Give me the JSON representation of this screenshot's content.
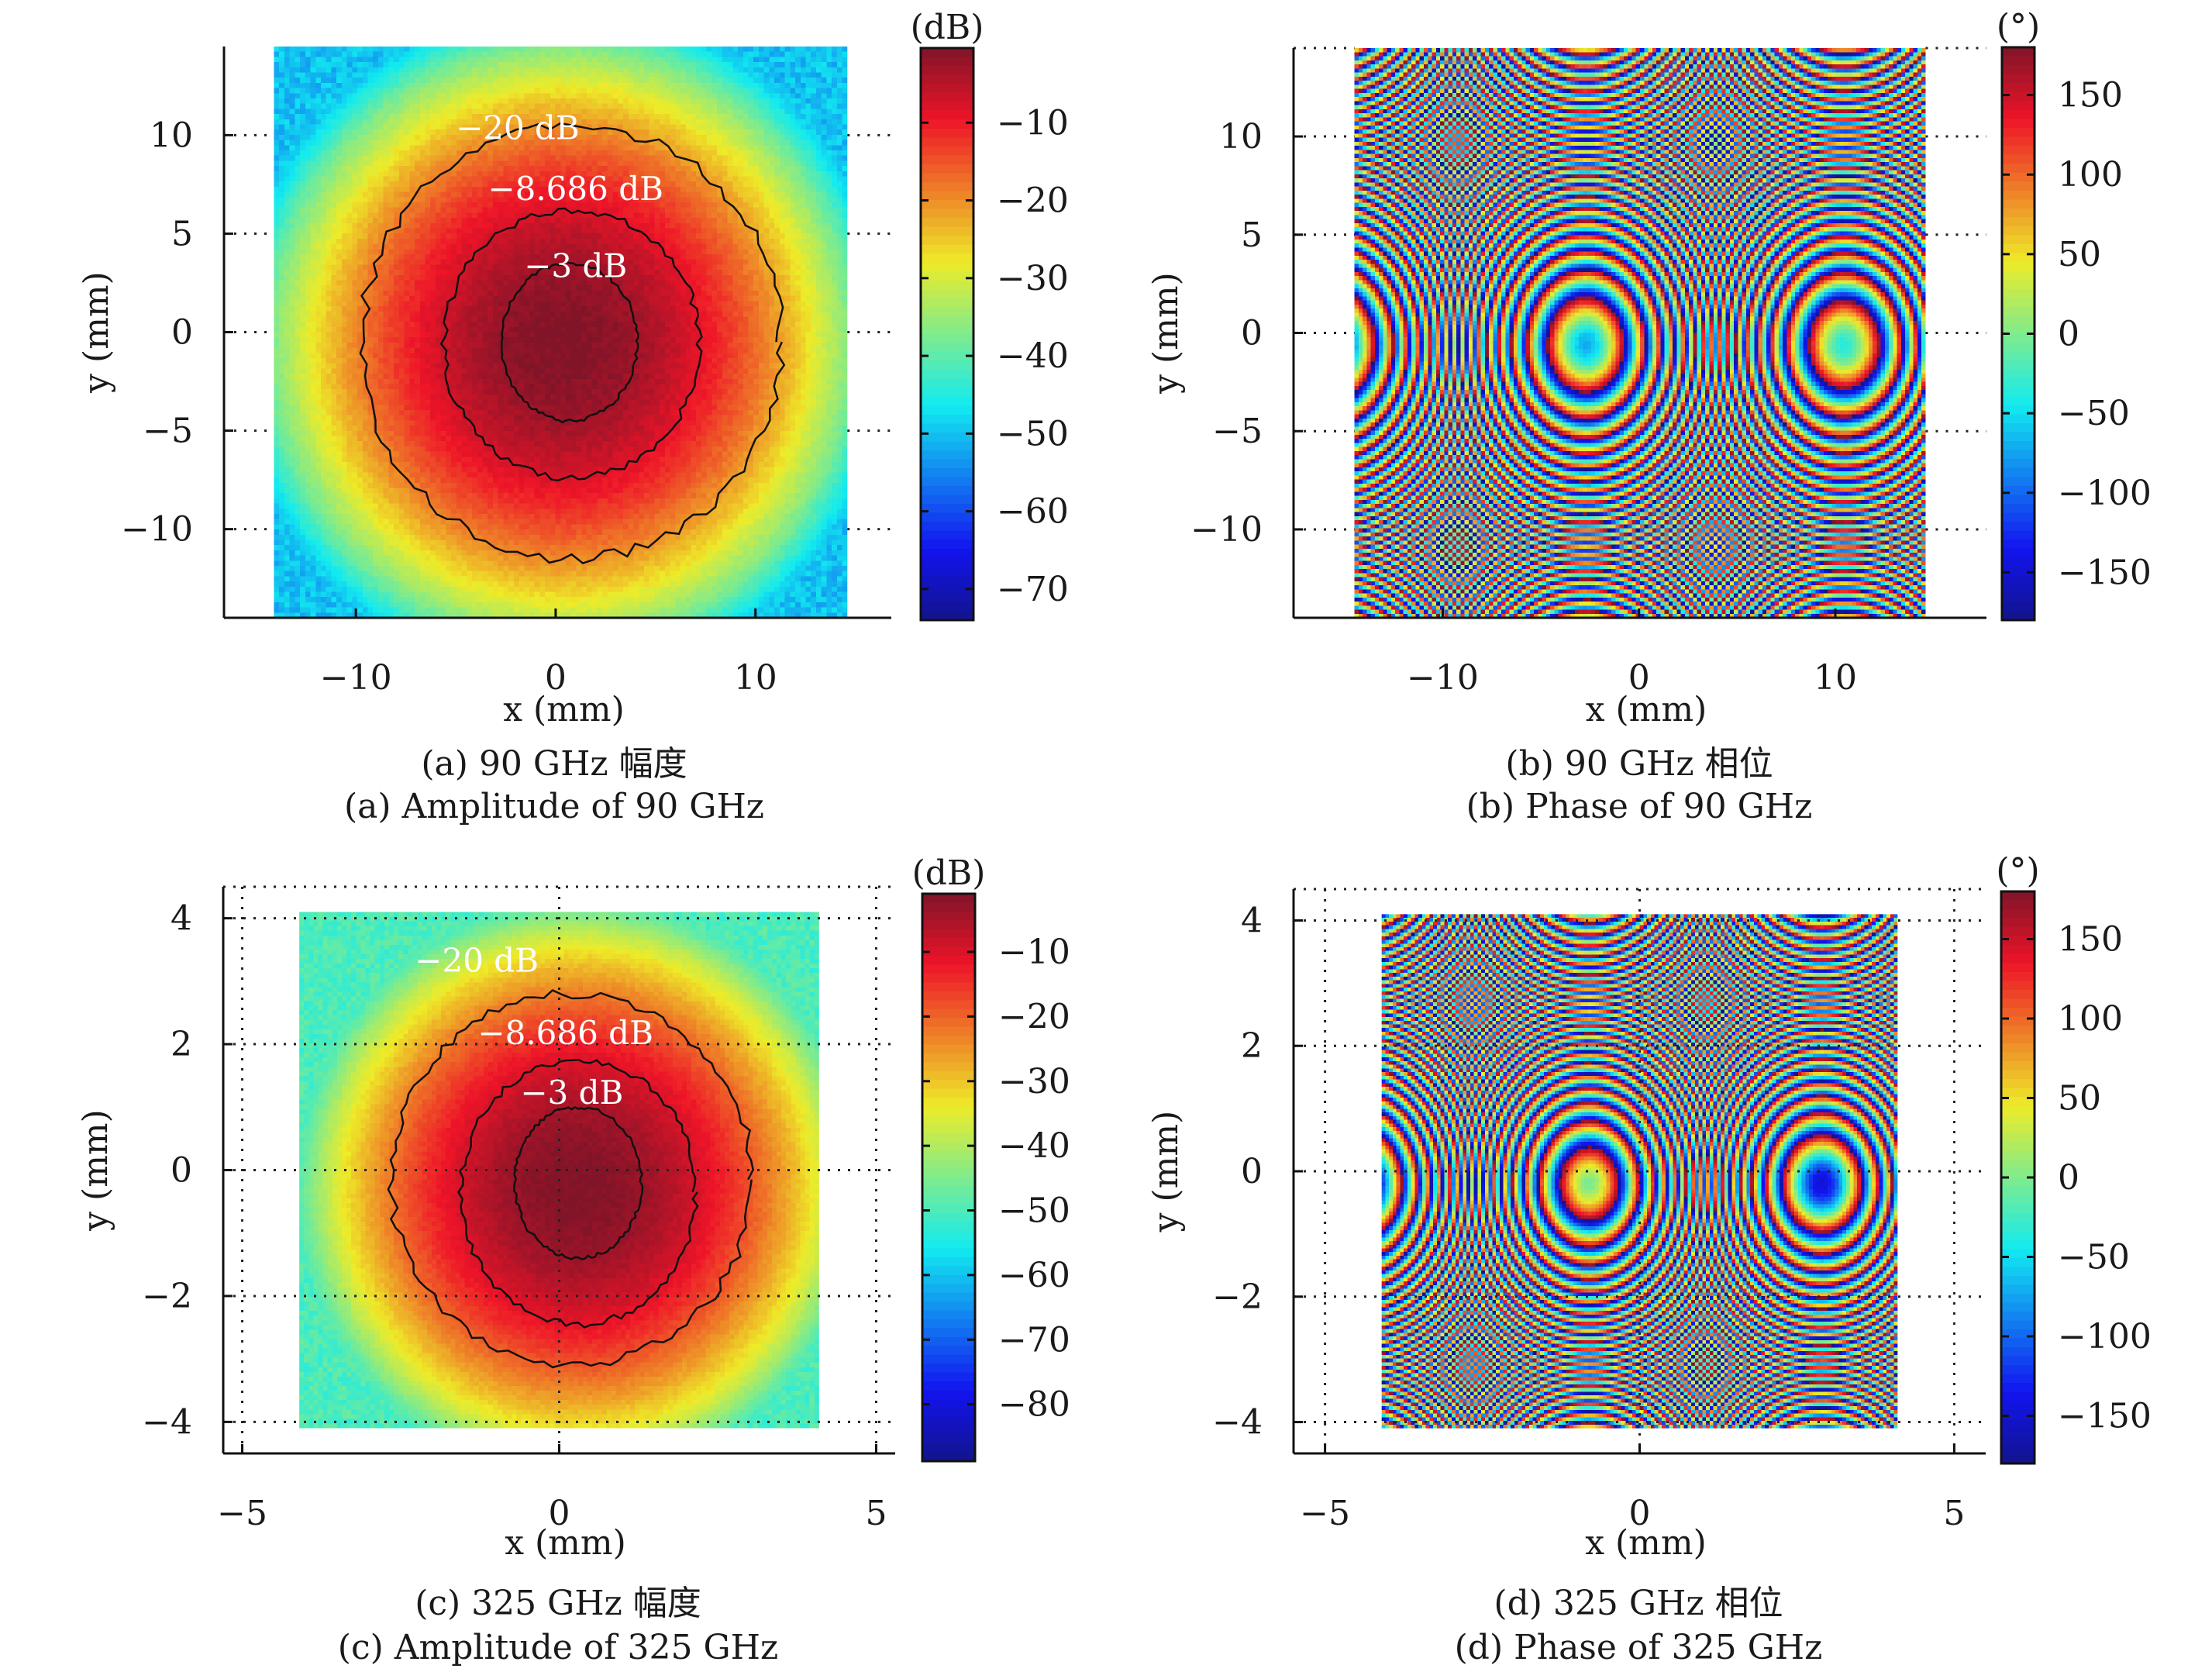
{
  "figure": {
    "panels": [
      "a",
      "b",
      "c",
      "d"
    ]
  },
  "chart_data": [
    {
      "id": "a",
      "type": "heatmap",
      "quantity": "amplitude",
      "title": "",
      "caption_cn": "(a) 90 GHz 幅度",
      "caption_en": "(a) Amplitude of 90 GHz",
      "xlabel": "x (mm)",
      "ylabel": "y (mm)",
      "xlim": [
        -16.6,
        16.8
      ],
      "ylim": [
        -14.5,
        14.5
      ],
      "data_xrange": [
        -14.1,
        14.6
      ],
      "data_yrange": [
        -14.5,
        14.5
      ],
      "xticks": [
        -10,
        0,
        10
      ],
      "xtick_labels": [
        "−10",
        "0",
        "10"
      ],
      "yticks": [
        10,
        5,
        0,
        -5,
        -10
      ],
      "ytick_labels": [
        "10",
        "5",
        "0",
        "−5",
        "−10"
      ],
      "grid": "dotted at y ticks outside data region",
      "colorbar": {
        "unit": "(dB)",
        "range": [
          -74,
          -0.4
        ],
        "ticks": [
          -10,
          -20,
          -30,
          -40,
          -50,
          -60,
          -70
        ],
        "tick_labels": [
          "−10",
          "−20",
          "−30",
          "−40",
          "−50",
          "−60",
          "−70"
        ],
        "colormap": "jet"
      },
      "beam": {
        "center_x": 0.3,
        "center_y": -0.6,
        "peak_db": -0.5
      },
      "contours": [
        {
          "level_db": -3,
          "label": "−3 dB",
          "rx": 3.4,
          "ry": 4.0,
          "cx": 0.7,
          "cy": -0.5,
          "label_x": 1.0,
          "label_y": 2.8
        },
        {
          "level_db": -8.686,
          "label": "−8.686 dB",
          "rx": 6.4,
          "ry": 6.8,
          "cx": 0.8,
          "cy": -0.6,
          "label_x": 1.0,
          "label_y": 6.7
        },
        {
          "level_db": -20,
          "label": "−20 dB",
          "rx": 10.5,
          "ry": 11.0,
          "cx": 0.8,
          "cy": -0.5,
          "label_x": -1.9,
          "label_y": 9.8
        }
      ]
    },
    {
      "id": "b",
      "type": "heatmap",
      "quantity": "phase",
      "title": "",
      "caption_cn": "(b) 90 GHz 相位",
      "caption_en": "(b) Phase of 90 GHz",
      "xlabel": "x (mm)",
      "ylabel": "y (mm)",
      "xlim": [
        -17.6,
        17.7
      ],
      "ylim": [
        -14.5,
        14.5
      ],
      "data_xrange": [
        -14.5,
        14.6
      ],
      "data_yrange": [
        -14.5,
        14.5
      ],
      "xticks": [
        -10,
        0,
        10
      ],
      "xtick_labels": [
        "−10",
        "0",
        "10"
      ],
      "yticks": [
        10,
        5,
        0,
        -5,
        -10
      ],
      "ytick_labels": [
        "10",
        "5",
        "0",
        "−5",
        "−10"
      ],
      "grid": "dotted at y ticks outside data region",
      "colorbar": {
        "unit": "(°)",
        "range": [
          -180,
          180
        ],
        "ticks": [
          150,
          100,
          50,
          0,
          -50,
          -100,
          -150
        ],
        "tick_labels": [
          "150",
          "100",
          "50",
          "0",
          "−50",
          "−100",
          "−150"
        ],
        "colormap": "jet"
      },
      "phase_rings": {
        "center_x": -2.7,
        "center_y": -0.6,
        "center_phase_deg": -70,
        "ring_spacing_mm": 1.35,
        "aspect_y": 1.25
      }
    },
    {
      "id": "c",
      "type": "heatmap",
      "quantity": "amplitude",
      "title": "",
      "caption_cn": "(c) 325 GHz 幅度",
      "caption_en": "(c) Amplitude of 325 GHz",
      "xlabel": "x (mm)",
      "ylabel": "y (mm)",
      "xlim": [
        -5.3,
        5.3
      ],
      "ylim": [
        -4.5,
        4.5
      ],
      "data_xrange": [
        -4.1,
        4.1
      ],
      "data_yrange": [
        -4.1,
        4.1
      ],
      "xticks": [
        -5,
        0,
        5
      ],
      "xtick_labels": [
        "−5",
        "0",
        "5"
      ],
      "yticks": [
        4,
        2,
        0,
        -2,
        -4
      ],
      "ytick_labels": [
        "4",
        "2",
        "0",
        "−2",
        "−4"
      ],
      "grid": "dotted",
      "colorbar": {
        "unit": "(dB)",
        "range": [
          -88.8,
          -1.0
        ],
        "ticks": [
          -10,
          -20,
          -30,
          -40,
          -50,
          -60,
          -70,
          -80
        ],
        "tick_labels": [
          "−10",
          "−20",
          "−30",
          "−40",
          "−50",
          "−60",
          "−70",
          "−80"
        ],
        "colormap": "jet"
      },
      "beam": {
        "center_x": 0.3,
        "center_y": -0.3,
        "peak_db": -1.0
      },
      "contours": [
        {
          "level_db": -3,
          "label": "−3 dB",
          "rx": 1.0,
          "ry": 1.2,
          "cx": 0.3,
          "cy": -0.2,
          "label_x": 0.2,
          "label_y": 1.05
        },
        {
          "level_db": -8.686,
          "label": "−8.686 dB",
          "rx": 1.85,
          "ry": 2.1,
          "cx": 0.3,
          "cy": -0.35,
          "label_x": 0.1,
          "label_y": 2.0
        },
        {
          "level_db": -20,
          "label": "−20 dB",
          "rx": 2.85,
          "ry": 2.95,
          "cx": 0.2,
          "cy": -0.15,
          "label_x": -1.3,
          "label_y": 3.15
        }
      ]
    },
    {
      "id": "d",
      "type": "heatmap",
      "quantity": "phase",
      "title": "",
      "caption_cn": "(d) 325 GHz 相位",
      "caption_en": "(d) Phase of 325 GHz",
      "xlabel": "x (mm)",
      "ylabel": "y (mm)",
      "xlim": [
        -5.5,
        5.5
      ],
      "ylim": [
        -4.5,
        4.5
      ],
      "data_xrange": [
        -4.1,
        4.1
      ],
      "data_yrange": [
        -4.1,
        4.1
      ],
      "xticks": [
        -5,
        0,
        5
      ],
      "xtick_labels": [
        "−5",
        "0",
        "5"
      ],
      "yticks": [
        4,
        2,
        0,
        -2,
        -4
      ],
      "ytick_labels": [
        "4",
        "2",
        "0",
        "−2",
        "−4"
      ],
      "grid": "dotted",
      "colorbar": {
        "unit": "(°)",
        "range": [
          -180,
          180
        ],
        "ticks": [
          150,
          100,
          50,
          0,
          -50,
          -100,
          -150
        ],
        "tick_labels": [
          "150",
          "100",
          "50",
          "0",
          "−50",
          "−100",
          "−150"
        ],
        "colormap": "jet"
      },
      "phase_rings": {
        "center_x": -0.8,
        "center_y": -0.2,
        "center_phase_deg": 0,
        "ring_spacing_mm": 0.38,
        "aspect_y": 1.25
      }
    }
  ]
}
